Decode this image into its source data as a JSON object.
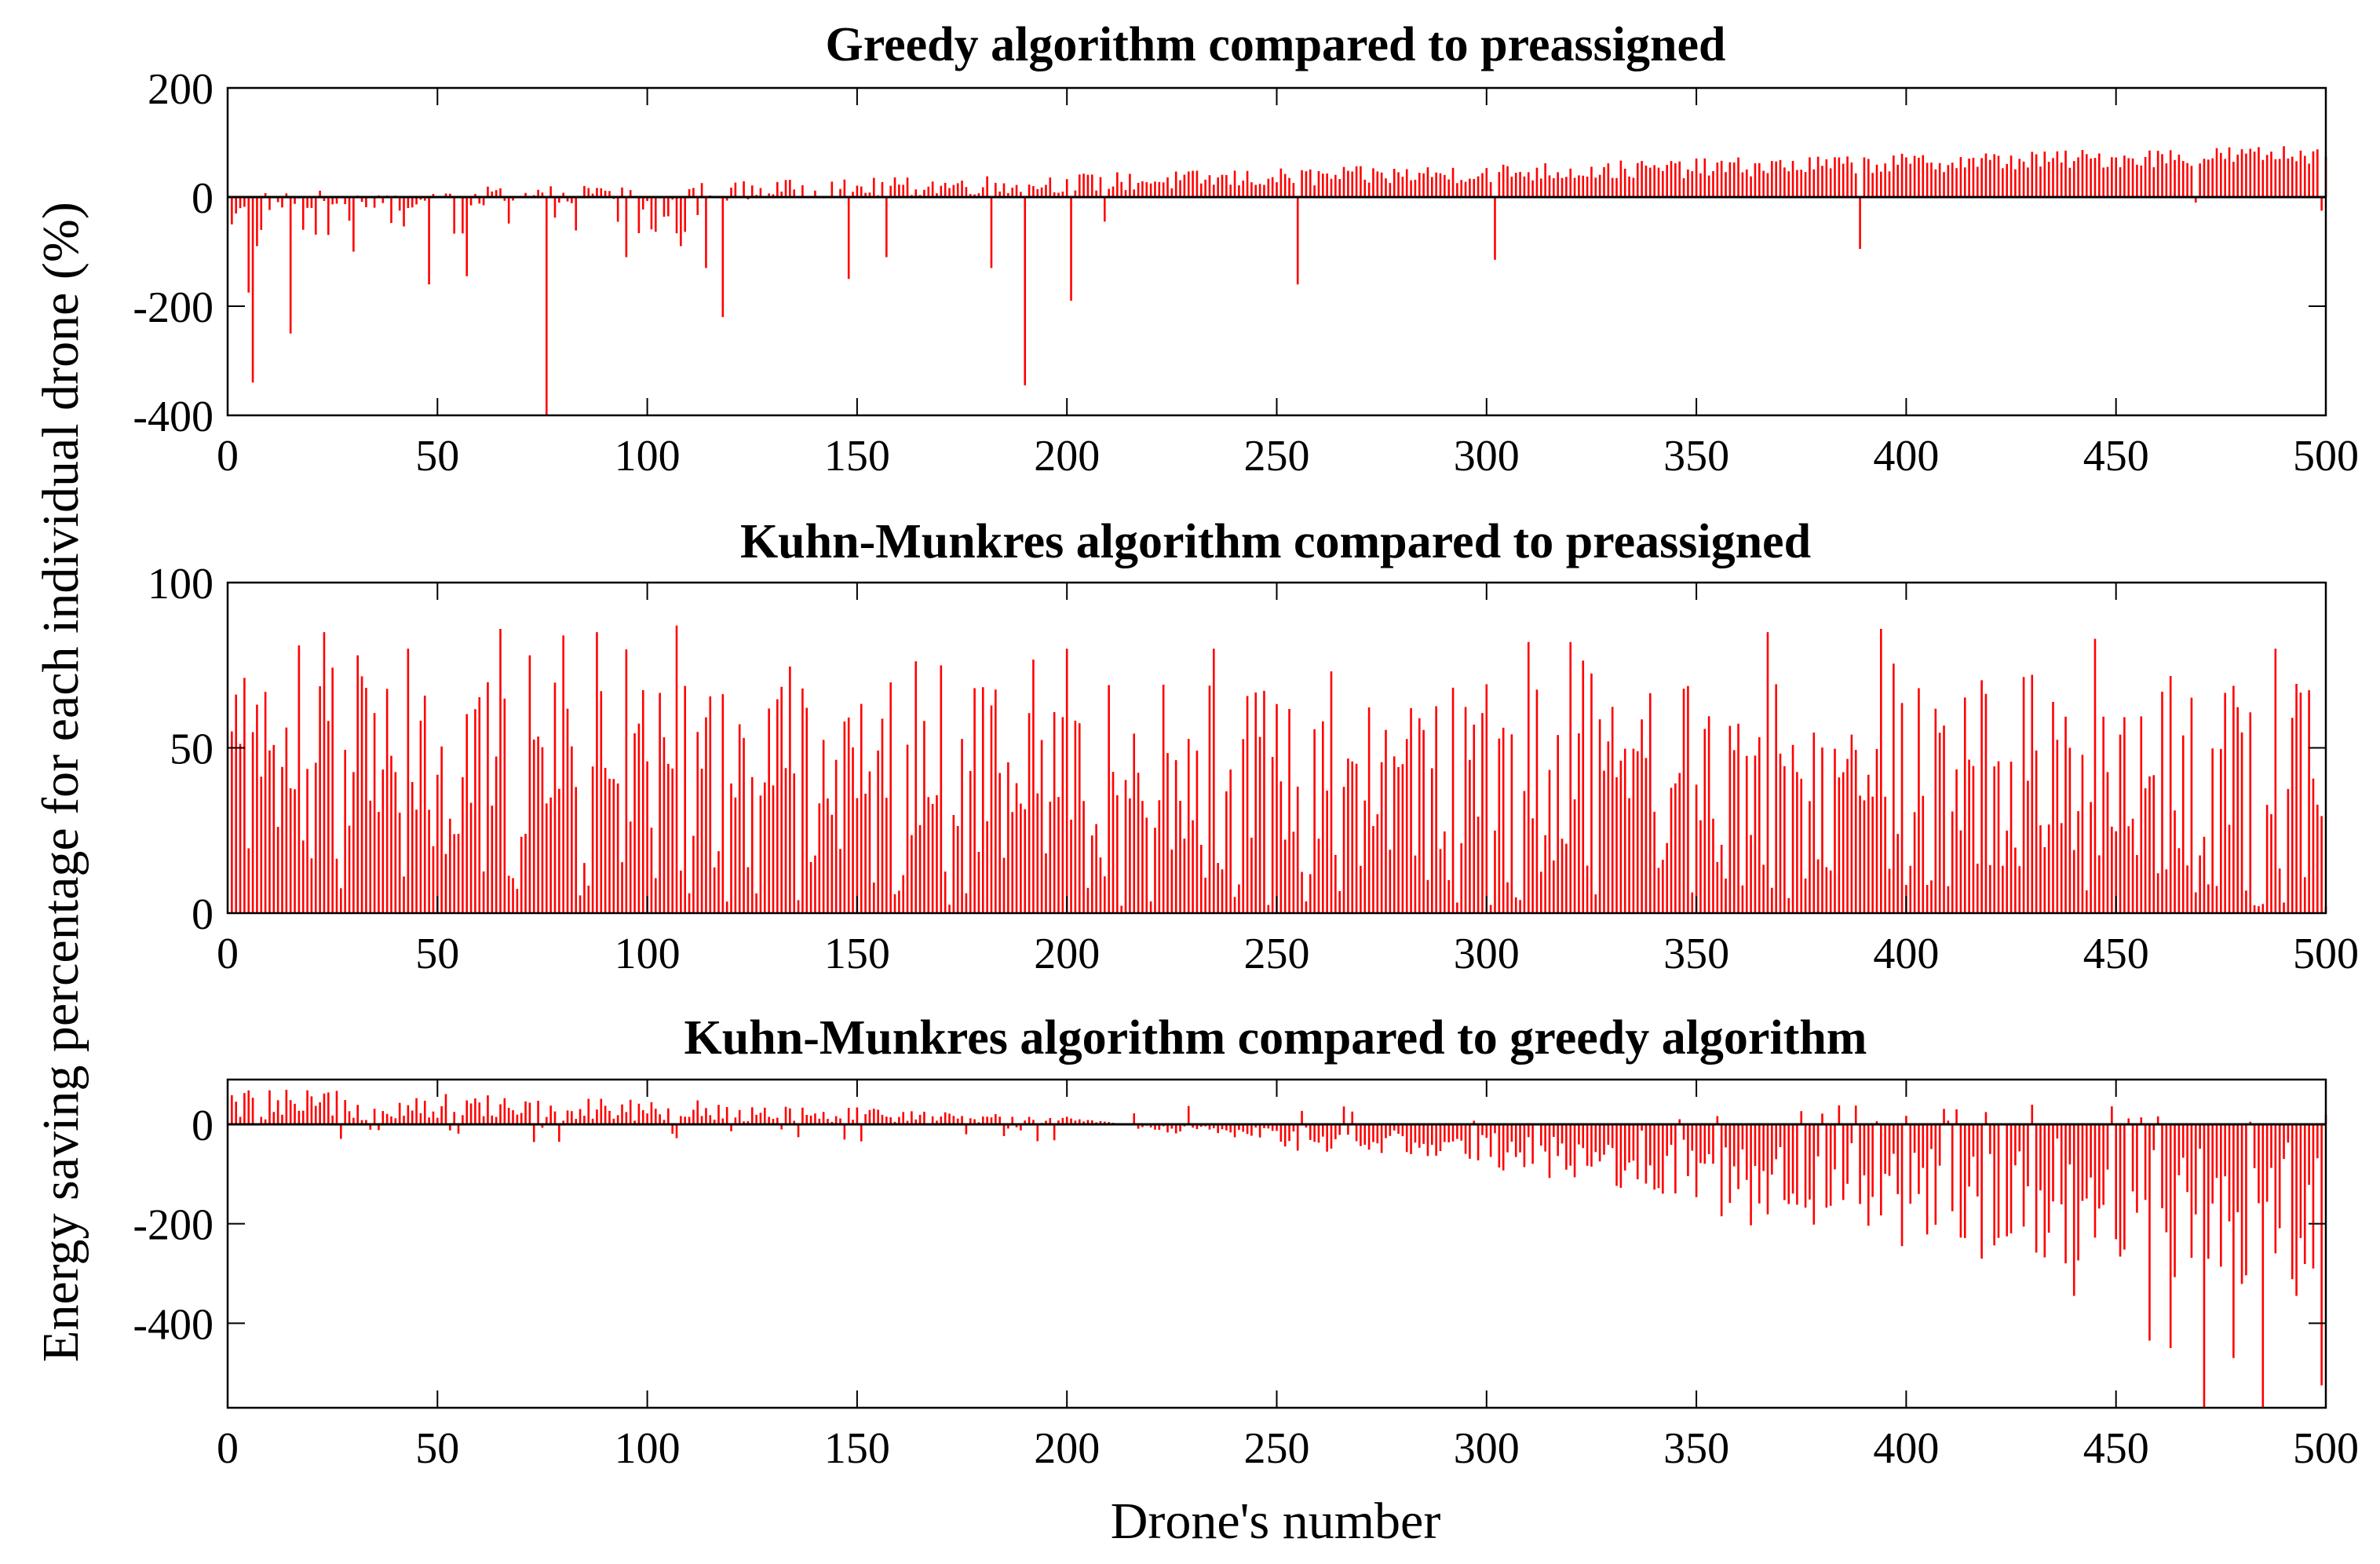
{
  "figure": {
    "ylabel": "Energy saving percentage for each individual drone (%)",
    "xlabel": "Drone's number"
  },
  "chart_data": [
    {
      "type": "bar",
      "title": "Greedy algorithm compared to preassigned",
      "xlabel": "Drone's number",
      "ylabel": "Energy saving percentage for each individual drone (%)",
      "xlim": [
        0,
        500
      ],
      "ylim": [
        -400,
        200
      ],
      "xticks": [
        0,
        50,
        100,
        150,
        200,
        250,
        300,
        350,
        400,
        450,
        500
      ],
      "yticks": [
        200,
        0,
        -200,
        -400
      ],
      "color": "#ff0000",
      "n": 500,
      "trend": {
        "start": -10,
        "end": 80,
        "noise": 18
      },
      "spikes": [
        {
          "x": 1,
          "value": -50
        },
        {
          "x": 2,
          "value": -30
        },
        {
          "x": 5,
          "value": -175
        },
        {
          "x": 6,
          "value": -340
        },
        {
          "x": 7,
          "value": -90
        },
        {
          "x": 15,
          "value": -250
        },
        {
          "x": 18,
          "value": -60
        },
        {
          "x": 30,
          "value": -100
        },
        {
          "x": 48,
          "value": -160
        },
        {
          "x": 57,
          "value": -145
        },
        {
          "x": 76,
          "value": -400
        },
        {
          "x": 95,
          "value": -110
        },
        {
          "x": 108,
          "value": -90
        },
        {
          "x": 114,
          "value": -130
        },
        {
          "x": 118,
          "value": -220
        },
        {
          "x": 148,
          "value": -150
        },
        {
          "x": 157,
          "value": -110
        },
        {
          "x": 182,
          "value": -130
        },
        {
          "x": 190,
          "value": -345
        },
        {
          "x": 201,
          "value": -190
        },
        {
          "x": 209,
          "value": -45
        },
        {
          "x": 255,
          "value": -160
        },
        {
          "x": 302,
          "value": -115
        },
        {
          "x": 389,
          "value": -95
        },
        {
          "x": 469,
          "value": -10
        },
        {
          "x": 499,
          "value": -25
        }
      ]
    },
    {
      "type": "bar",
      "title": "Kuhn-Munkres algorithm compared to preassigned",
      "xlabel": "Drone's number",
      "ylabel": "Energy saving percentage for each individual drone (%)",
      "xlim": [
        0,
        500
      ],
      "ylim": [
        0,
        100
      ],
      "xticks": [
        0,
        50,
        100,
        150,
        200,
        250,
        300,
        350,
        400,
        450,
        500
      ],
      "yticks": [
        100,
        50,
        0
      ],
      "color": "#ff0000",
      "n": 500,
      "range": [
        2,
        88
      ],
      "peaks": [
        {
          "x": 17,
          "value": 81
        },
        {
          "x": 23,
          "value": 85
        },
        {
          "x": 31,
          "value": 78
        },
        {
          "x": 43,
          "value": 80
        },
        {
          "x": 65,
          "value": 86
        },
        {
          "x": 72,
          "value": 78
        },
        {
          "x": 80,
          "value": 84
        },
        {
          "x": 88,
          "value": 85
        },
        {
          "x": 107,
          "value": 87
        },
        {
          "x": 200,
          "value": 80
        },
        {
          "x": 235,
          "value": 80
        },
        {
          "x": 310,
          "value": 82
        },
        {
          "x": 320,
          "value": 82
        },
        {
          "x": 367,
          "value": 85
        },
        {
          "x": 394,
          "value": 86
        },
        {
          "x": 445,
          "value": 83
        },
        {
          "x": 488,
          "value": 80
        }
      ]
    },
    {
      "type": "bar",
      "title": "Kuhn-Munkres algorithm compared to greedy algorithm",
      "xlabel": "Drone's number",
      "ylabel": "Energy saving percentage for each individual drone (%)",
      "xlim": [
        0,
        500
      ],
      "ylim": [
        -570,
        90
      ],
      "xticks": [
        0,
        50,
        100,
        150,
        200,
        250,
        300,
        350,
        400,
        450,
        500
      ],
      "yticks": [
        0,
        -200,
        -400
      ],
      "color": "#ff0000",
      "n": 500,
      "trend": [
        {
          "x": 0,
          "value": 45
        },
        {
          "x": 100,
          "value": 35
        },
        {
          "x": 200,
          "value": 10
        },
        {
          "x": 300,
          "value": -60
        },
        {
          "x": 350,
          "value": -130
        },
        {
          "x": 400,
          "value": -180
        },
        {
          "x": 450,
          "value": -230
        },
        {
          "x": 500,
          "value": -260
        }
      ],
      "spikes": [
        {
          "x": 356,
          "value": -185
        },
        {
          "x": 399,
          "value": -245
        },
        {
          "x": 418,
          "value": -270
        },
        {
          "x": 440,
          "value": -345
        },
        {
          "x": 458,
          "value": -435
        },
        {
          "x": 463,
          "value": -450
        },
        {
          "x": 471,
          "value": -570
        },
        {
          "x": 478,
          "value": -470
        },
        {
          "x": 485,
          "value": -570
        },
        {
          "x": 493,
          "value": -345
        },
        {
          "x": 497,
          "value": -290
        },
        {
          "x": 499,
          "value": -525
        }
      ]
    }
  ]
}
